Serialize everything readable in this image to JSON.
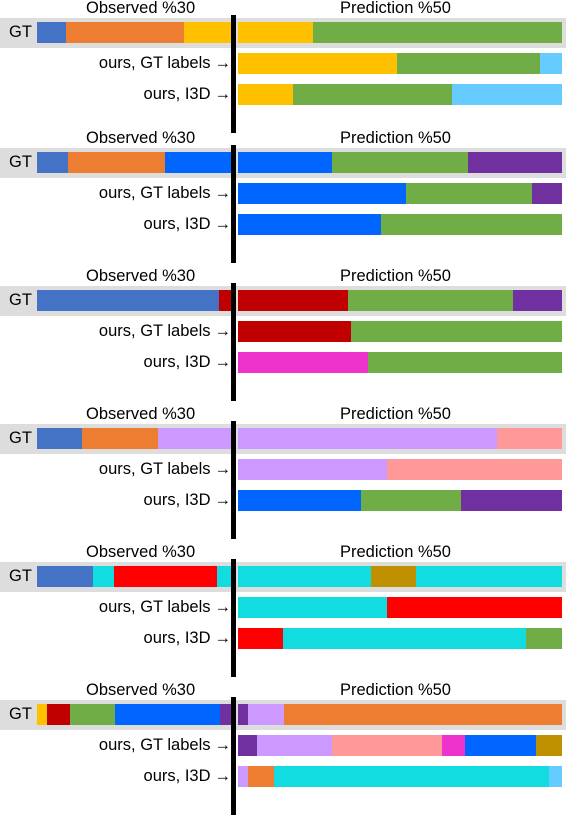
{
  "colors": {
    "blue_grey": "#4472c4",
    "orange": "#ed7d31",
    "yellow": "#ffc000",
    "green": "#70ad47",
    "light_blue": "#66ccff",
    "bright_blue": "#0066ff",
    "purple": "#7030a0",
    "dark_red": "#c00000",
    "red": "#ff0000",
    "magenta": "#ee33cc",
    "lavender": "#cc99ff",
    "pink": "#ff9999",
    "cyan": "#12dce0",
    "gold": "#bf9000",
    "gt_band": "#dddddd"
  },
  "labels": {
    "gt": "GT",
    "gt_labels": "ours, GT labels",
    "i3d": "ours, I3D",
    "arrow": "→",
    "observed": "Observed %30",
    "prediction": "Prediction %50"
  },
  "panels": [
    {
      "observed": [
        [
          "blue_grey",
          0.15
        ],
        [
          "orange",
          0.61
        ],
        [
          "yellow",
          0.24
        ]
      ],
      "gt_pred": [
        [
          "yellow",
          0.23
        ],
        [
          "green",
          0.77
        ]
      ],
      "gt_labels_pred": [
        [
          "yellow",
          0.49
        ],
        [
          "green",
          0.44
        ],
        [
          "light_blue",
          0.07
        ]
      ],
      "i3d_pred": [
        [
          "yellow",
          0.17
        ],
        [
          "green",
          0.49
        ],
        [
          "light_blue",
          0.34
        ]
      ]
    },
    {
      "observed": [
        [
          "blue_grey",
          0.16
        ],
        [
          "orange",
          0.5
        ],
        [
          "bright_blue",
          0.34
        ]
      ],
      "gt_pred": [
        [
          "bright_blue",
          0.29
        ],
        [
          "green",
          0.42
        ],
        [
          "purple",
          0.29
        ]
      ],
      "gt_labels_pred": [
        [
          "bright_blue",
          0.52
        ],
        [
          "green",
          0.39
        ],
        [
          "purple",
          0.09
        ]
      ],
      "i3d_pred": [
        [
          "bright_blue",
          0.44
        ],
        [
          "green",
          0.56
        ]
      ]
    },
    {
      "observed": [
        [
          "blue_grey",
          0.94
        ],
        [
          "dark_red",
          0.06
        ]
      ],
      "gt_pred": [
        [
          "dark_red",
          0.34
        ],
        [
          "green",
          0.51
        ],
        [
          "purple",
          0.15
        ]
      ],
      "gt_labels_pred": [
        [
          "dark_red",
          0.35
        ],
        [
          "green",
          0.65
        ]
      ],
      "i3d_pred": [
        [
          "magenta",
          0.4
        ],
        [
          "green",
          0.6
        ]
      ]
    },
    {
      "observed": [
        [
          "blue_grey",
          0.23
        ],
        [
          "orange",
          0.39
        ],
        [
          "lavender",
          0.38
        ]
      ],
      "gt_pred": [
        [
          "lavender",
          0.8
        ],
        [
          "pink",
          0.2
        ]
      ],
      "gt_labels_pred": [
        [
          "lavender",
          0.46
        ],
        [
          "pink",
          0.54
        ]
      ],
      "i3d_pred": [
        [
          "bright_blue",
          0.38
        ],
        [
          "green",
          0.31
        ],
        [
          "purple",
          0.31
        ]
      ]
    },
    {
      "observed": [
        [
          "blue_grey",
          0.29
        ],
        [
          "cyan",
          0.11
        ],
        [
          "red",
          0.53
        ],
        [
          "cyan",
          0.07
        ]
      ],
      "gt_pred": [
        [
          "cyan",
          0.41
        ],
        [
          "gold",
          0.14
        ],
        [
          "cyan",
          0.45
        ]
      ],
      "gt_labels_pred": [
        [
          "cyan",
          0.46
        ],
        [
          "red",
          0.54
        ]
      ],
      "i3d_pred": [
        [
          "red",
          0.14
        ],
        [
          "cyan",
          0.75
        ],
        [
          "green",
          0.11
        ]
      ]
    },
    {
      "observed": [
        [
          "yellow",
          0.05
        ],
        [
          "dark_red",
          0.12
        ],
        [
          "green",
          0.23
        ],
        [
          "bright_blue",
          0.54
        ],
        [
          "purple",
          0.06
        ]
      ],
      "gt_pred": [
        [
          "purple",
          0.03
        ],
        [
          "lavender",
          0.11
        ],
        [
          "orange",
          0.86
        ]
      ],
      "gt_labels_pred": [
        [
          "purple",
          0.06
        ],
        [
          "lavender",
          0.23
        ],
        [
          "pink",
          0.34
        ],
        [
          "magenta",
          0.07
        ],
        [
          "bright_blue",
          0.22
        ],
        [
          "gold",
          0.08
        ]
      ],
      "i3d_pred": [
        [
          "lavender",
          0.03
        ],
        [
          "orange",
          0.08
        ],
        [
          "cyan",
          0.85
        ],
        [
          "light_blue",
          0.04
        ]
      ]
    }
  ]
}
